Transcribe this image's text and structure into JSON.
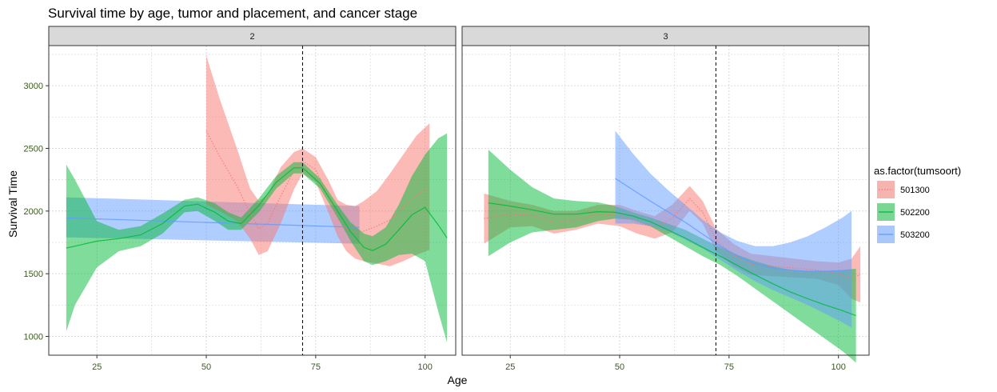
{
  "chart_data": {
    "type": "area",
    "title": "Survival time by age, tumor and placement, and cancer stage",
    "xlabel": "Age",
    "ylabel": "Survival Time",
    "xlim": [
      14,
      107
    ],
    "ylim": [
      850,
      3320
    ],
    "x_ticks": [
      25,
      50,
      75,
      100
    ],
    "y_ticks": [
      1000,
      1500,
      2000,
      2500,
      3000
    ],
    "reference_line_x": 72,
    "grid": true,
    "legend_placement": "right",
    "legend_title": "as.factor(tumsoort)",
    "series": [
      {
        "name": "501300",
        "color": "#F8766D",
        "line_style": "dotted"
      },
      {
        "name": "502200",
        "color": "#00BA38",
        "line_style": "solid"
      },
      {
        "name": "503200",
        "color": "#619CFF",
        "line_style": "solid"
      }
    ],
    "panels": [
      {
        "strip_label": "2",
        "bands": [
          {
            "series": "503200",
            "x": [
              18,
              85
            ],
            "lower": [
              1790,
              1740
            ],
            "upper": [
              2110,
              2040
            ],
            "fit": [
              1945,
              1870
            ]
          },
          {
            "series": "501300",
            "x": [
              50,
              53,
              57,
              60,
              62,
              64,
              67,
              70,
              72,
              75,
              78,
              80,
              82,
              84,
              86,
              89,
              92,
              95,
              98,
              101
            ],
            "lower": [
              2050,
              2000,
              1920,
              1780,
              1650,
              1680,
              1900,
              2170,
              2300,
              2230,
              1980,
              1800,
              1680,
              1620,
              1600,
              1580,
              1560,
              1600,
              1650,
              1690
            ],
            "upper": [
              3240,
              2900,
              2500,
              2180,
              2080,
              2130,
              2350,
              2470,
              2500,
              2430,
              2240,
              2090,
              2050,
              2040,
              2080,
              2160,
              2300,
              2450,
              2600,
              2700
            ],
            "fit": [
              2640,
              2440,
              2200,
              1980,
              1860,
              1900,
              2120,
              2320,
              2400,
              2330,
              2110,
              1940,
              1860,
              1830,
              1840,
              1880,
              1930,
              2030,
              2120,
              2190
            ]
          },
          {
            "series": "502200",
            "x": [
              18,
              20,
              25,
              30,
              35,
              40,
              45,
              48,
              52,
              55,
              58,
              62,
              66,
              70,
              72,
              76,
              80,
              83,
              86,
              88,
              91,
              94,
              97,
              100,
              103,
              105
            ],
            "lower": [
              1040,
              1250,
              1550,
              1680,
              1720,
              1820,
              1990,
              2000,
              1920,
              1850,
              1850,
              1990,
              2180,
              2300,
              2300,
              2180,
              1950,
              1760,
              1600,
              1570,
              1600,
              1650,
              1660,
              1600,
              1200,
              950
            ],
            "upper": [
              2370,
              2250,
              1920,
              1850,
              1880,
              1980,
              2090,
              2110,
              2060,
              1990,
              1950,
              2100,
              2280,
              2390,
              2390,
              2260,
              2050,
              1910,
              1820,
              1800,
              1870,
              2050,
              2280,
              2450,
              2580,
              2620
            ],
            "fit": [
              1705,
              1720,
              1760,
              1780,
              1810,
              1900,
              2040,
              2055,
              1990,
              1920,
              1900,
              2045,
              2230,
              2345,
              2345,
              2220,
              2000,
              1835,
              1710,
              1685,
              1735,
              1850,
              1970,
              2030,
              1890,
              1785
            ]
          }
        ]
      },
      {
        "strip_label": "3",
        "bands": [
          {
            "series": "501300",
            "x": [
              19,
              25,
              30,
              35,
              40,
              45,
              50,
              54,
              58,
              62,
              66,
              69,
              72,
              76,
              80,
              85,
              90,
              95,
              100,
              103,
              105
            ],
            "lower": [
              1740,
              1870,
              1880,
              1820,
              1850,
              1900,
              1880,
              1820,
              1780,
              1830,
              2000,
              1900,
              1680,
              1560,
              1490,
              1480,
              1470,
              1460,
              1410,
              1300,
              1270
            ],
            "upper": [
              2140,
              2080,
              2050,
              2000,
              2000,
              2050,
              2050,
              2000,
              1960,
              2050,
              2200,
              2080,
              1860,
              1740,
              1660,
              1640,
              1620,
              1600,
              1590,
              1620,
              1720
            ],
            "fit": [
              1940,
              1975,
              1965,
              1910,
              1925,
              1975,
              1965,
              1910,
              1870,
              1940,
              2100,
              1990,
              1770,
              1650,
              1575,
              1560,
              1545,
              1530,
              1500,
              1460,
              1495
            ]
          },
          {
            "series": "502200",
            "x": [
              20,
              25,
              30,
              35,
              40,
              45,
              49,
              53,
              57,
              61,
              65,
              69,
              73,
              77,
              81,
              85,
              89,
              93,
              97,
              101,
              104
            ],
            "lower": [
              1640,
              1750,
              1830,
              1850,
              1870,
              1920,
              1940,
              1930,
              1880,
              1800,
              1720,
              1640,
              1570,
              1480,
              1380,
              1280,
              1180,
              1080,
              980,
              880,
              790
            ],
            "upper": [
              2490,
              2330,
              2190,
              2100,
              2080,
              2070,
              2040,
              1990,
              1950,
              1900,
              1850,
              1780,
              1710,
              1650,
              1600,
              1560,
              1530,
              1520,
              1520,
              1530,
              1540
            ],
            "fit": [
              2065,
              2040,
              2010,
              1975,
              1975,
              1995,
              1990,
              1960,
              1915,
              1850,
              1785,
              1710,
              1640,
              1565,
              1490,
              1420,
              1355,
              1300,
              1250,
              1205,
              1165
            ]
          },
          {
            "series": "503200",
            "x": [
              49,
              53,
              57,
              61,
              65,
              69,
              73,
              77,
              81,
              85,
              89,
              93,
              97,
              101,
              103
            ],
            "lower": [
              1900,
              1900,
              1880,
              1840,
              1770,
              1700,
              1610,
              1520,
              1440,
              1370,
              1310,
              1250,
              1180,
              1110,
              1070
            ],
            "upper": [
              2640,
              2460,
              2300,
              2170,
              2050,
              1930,
              1830,
              1760,
              1720,
              1720,
              1750,
              1800,
              1870,
              1950,
              2000
            ],
            "fit": [
              2260,
              2170,
              2080,
              1995,
              1910,
              1815,
              1720,
              1640,
              1580,
              1545,
              1530,
              1520,
              1520,
              1525,
              1530
            ]
          }
        ]
      }
    ]
  }
}
